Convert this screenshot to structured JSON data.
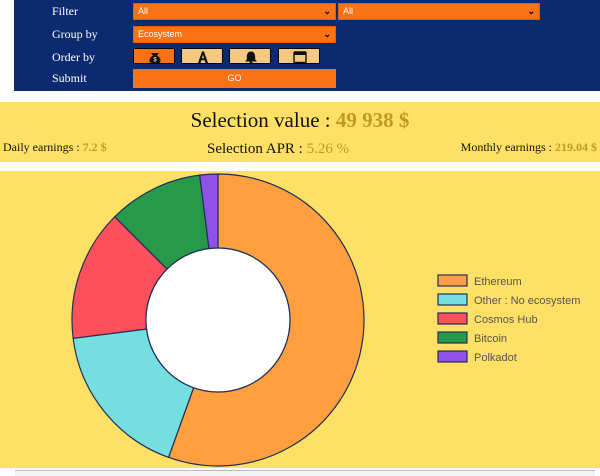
{
  "form": {
    "filter_label": "Filter",
    "group_by_label": "Group by",
    "order_by_label": "Order by",
    "submit_label": "Submit",
    "filter_select_1": "All",
    "filter_select_2": "All",
    "group_by_select": "Ecosystem",
    "go_button": "GO",
    "order_icons": [
      "money-bag-icon",
      "letter-a-icon",
      "bell-icon",
      "calendar-icon"
    ],
    "colors": {
      "panel": "#0b2a6f",
      "accent": "#f97316",
      "icon_button": "#f5c883"
    }
  },
  "summary": {
    "selection_value_label": "Selection value : ",
    "selection_value": "49 938 $",
    "daily_label": "Daily earnings : ",
    "daily_value": "7.2 $",
    "apr_label": "Selection APR : ",
    "apr_value": "5.26 %",
    "monthly_label": "Monthly earnings : ",
    "monthly_value": "219.04 $",
    "colors": {
      "background": "#ffe066",
      "value": "#c29a1f"
    }
  },
  "chart_data": {
    "type": "pie",
    "style": "doughnut",
    "legend_position": "right",
    "categories": [
      "Ethereum",
      "Other : No ecosystem",
      "Cosmos Hub",
      "Bitcoin",
      "Polkadot"
    ],
    "values": [
      55.5,
      17.5,
      14.5,
      10.5,
      2.0
    ],
    "colors": [
      "#ff9f40",
      "#75dfe0",
      "#ff4f5a",
      "#27994a",
      "#8e52e6"
    ]
  }
}
